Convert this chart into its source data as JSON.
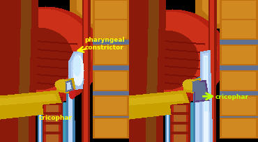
{
  "figsize": [
    3.7,
    2.05
  ],
  "dpi": 100,
  "bg_color": "#000000",
  "left_labels": {
    "pharyngeal": "pharyngeal",
    "constrictor": "constrictor",
    "cricophar": "cricophar",
    "font_color": "#ffff00",
    "font_size": 6.5
  },
  "right_labels": {
    "cricophar": "cricophar",
    "font_color": "#b8ff00",
    "font_size": 6.5
  },
  "colors": {
    "black": "#000000",
    "muscle_red_dark": "#8B1A0A",
    "muscle_red_mid": "#B52010",
    "muscle_red_bright": "#CC3018",
    "muscle_red_light": "#D84030",
    "orange_bone": "#C07010",
    "orange_bone_light": "#D08820",
    "orange_bone_bright": "#E09828",
    "disc_blue_gray": "#607090",
    "disc_gray": "#506070",
    "bolus_blue_light": "#C0D8F8",
    "bolus_white": "#E8F4FF",
    "bolus_blue_mid": "#A0C0E8",
    "bolus_glow": "#D0ECFF",
    "blue_strip": "#4080B0",
    "blue_strip_light": "#60A0D0",
    "cyan_strip": "#40A0B8",
    "yellow_soft": "#C8A000",
    "yellow_bright": "#D4B010",
    "yellow_green": "#AACC00",
    "red_vessel": "#CC2020",
    "skin_orange": "#B06020",
    "skin_brown": "#804010",
    "purple_bg": "#604080",
    "muscle_fiber_dark": "#7A1008",
    "muscle_fiber_mid": "#A01808",
    "top_orange": "#B87010",
    "top_orange_dark": "#906010"
  }
}
